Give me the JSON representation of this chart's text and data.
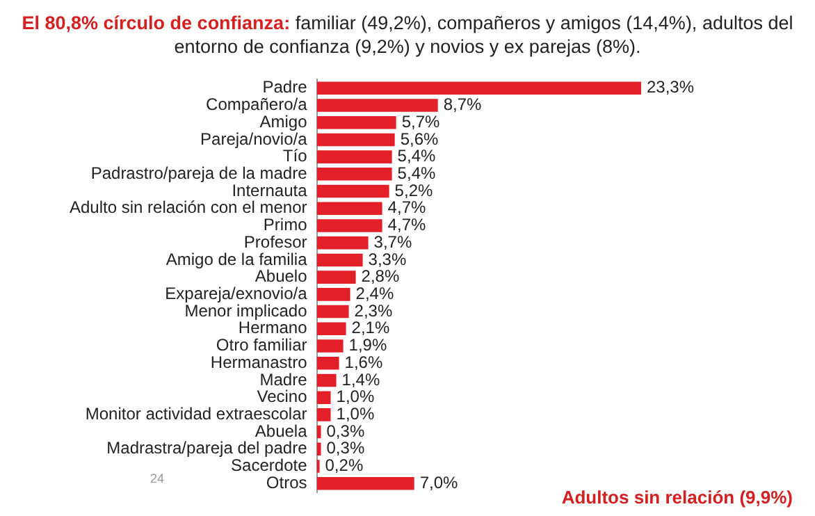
{
  "chart_data": {
    "type": "bar",
    "orientation": "horizontal",
    "title": "El 80,8% círculo de confianza:",
    "subtitle": "familiar (49,2%), compañeros y amigos (14,4%), adultos del entorno de confianza (9,2%) y novios y ex parejas (8%).",
    "categories": [
      "Padre",
      "Compañero/a",
      "Amigo",
      "Pareja/novio/a",
      "Tío",
      "Padrastro/pareja de la madre",
      "Internauta",
      "Adulto sin relación con el menor",
      "Primo",
      "Profesor",
      "Amigo de la familia",
      "Abuelo",
      "Expareja/exnovio/a",
      "Menor implicado",
      "Hermano",
      "Otro familiar",
      "Hermanastro",
      "Madre",
      "Vecino",
      "Monitor actividad extraescolar",
      "Abuela",
      "Madrastra/pareja del padre",
      "Sacerdote",
      "Otros"
    ],
    "values": [
      23.3,
      8.7,
      5.7,
      5.6,
      5.4,
      5.4,
      5.2,
      4.7,
      4.7,
      3.7,
      3.3,
      2.8,
      2.4,
      2.3,
      2.1,
      1.9,
      1.6,
      1.4,
      1.0,
      1.0,
      0.3,
      0.3,
      0.2,
      7.0
    ],
    "value_labels": [
      "23,3%",
      "8,7%",
      "5,7%",
      "5,6%",
      "5,4%",
      "5,4%",
      "5,2%",
      "4,7%",
      "4,7%",
      "3,7%",
      "3,3%",
      "2,8%",
      "2,4%",
      "2,3%",
      "2,1%",
      "1,9%",
      "1,6%",
      "1,4%",
      "1,0%",
      "1,0%",
      "0,3%",
      "0,3%",
      "0,2%",
      "7,0%"
    ],
    "color": "#e3202a",
    "tick_labels": "y",
    "annotations": [
      "Adultos sin relación (9,9%)",
      "24"
    ]
  }
}
